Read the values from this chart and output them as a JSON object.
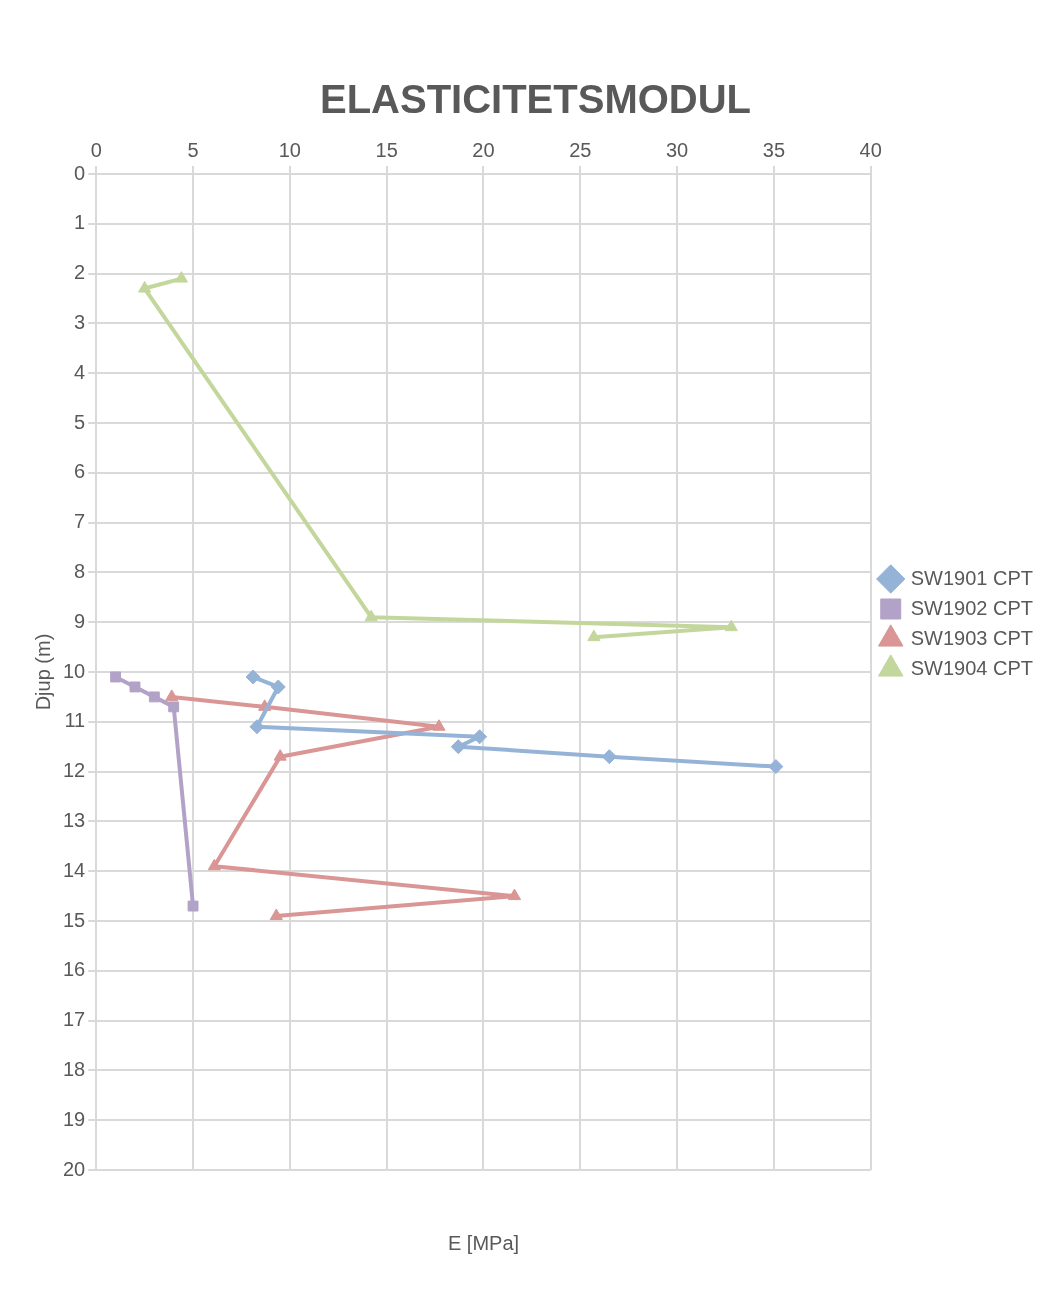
{
  "chart_data": {
    "type": "line",
    "title": "ELASTICITETSMODUL",
    "xlabel": "E [MPa]",
    "ylabel": "Djup (m)",
    "xlim": [
      0,
      40
    ],
    "xticks": [
      0,
      5,
      10,
      15,
      20,
      25,
      30,
      35,
      40
    ],
    "ylim": [
      20,
      0
    ],
    "yticks": [
      0,
      1,
      2,
      3,
      4,
      5,
      6,
      7,
      8,
      9,
      10,
      11,
      12,
      13,
      14,
      15,
      16,
      17,
      18,
      19,
      20
    ],
    "grid": true,
    "legend": "right",
    "line_style": "solid",
    "series": [
      {
        "name": "SW1901 CPT",
        "color": "#95b3d7",
        "marker": "diamond",
        "x": [
          8.1,
          9.4,
          8.3,
          19.8,
          18.7,
          26.5,
          35.1
        ],
        "values": [
          10.1,
          10.3,
          11.1,
          11.3,
          11.5,
          11.7,
          11.9
        ]
      },
      {
        "name": "SW1902 CPT",
        "color": "#b3a2c7",
        "marker": "square",
        "x": [
          1.0,
          2.0,
          3.0,
          4.0,
          5.0
        ],
        "values": [
          10.1,
          10.3,
          10.5,
          10.7,
          14.7
        ]
      },
      {
        "name": "SW1903 CPT",
        "color": "#d99694",
        "marker": "triangle",
        "x": [
          3.9,
          8.7,
          17.7,
          9.5,
          6.1,
          21.6,
          9.3
        ],
        "values": [
          10.5,
          10.7,
          11.1,
          11.7,
          13.9,
          14.5,
          14.9
        ]
      },
      {
        "name": "SW1904 CPT",
        "color": "#c3d69b",
        "marker": "triangle",
        "x": [
          4.4,
          2.5,
          14.2,
          32.8,
          25.7
        ],
        "values": [
          2.1,
          2.3,
          8.9,
          9.1,
          9.3
        ]
      }
    ]
  }
}
